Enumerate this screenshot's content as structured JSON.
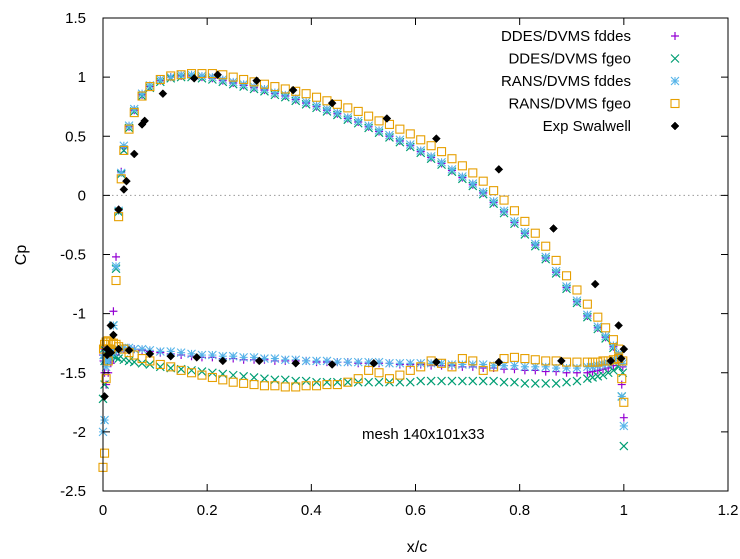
{
  "chart_data": {
    "type": "scatter",
    "xlabel": "x/c",
    "ylabel": "Cp",
    "xlim": [
      0,
      1.2
    ],
    "ylim": [
      -2.5,
      1.5
    ],
    "x_ticks": [
      "0",
      "0.2",
      "0.4",
      "0.6",
      "0.8",
      "1",
      "1.2"
    ],
    "y_ticks": [
      "1.5",
      "1",
      "0.5",
      "0",
      "-0.5",
      "-1",
      "-1.5",
      "-2",
      "-2.5"
    ],
    "reference_line": {
      "y": 0,
      "style": "dotted"
    },
    "legend_position": "top-right",
    "annotation": "mesh 140x101x33",
    "series": [
      {
        "name": "DDES/DVMS fddes",
        "marker": "plus",
        "color": "#9400d3",
        "x": [
          0.0,
          0.003,
          0.006,
          0.01,
          0.015,
          0.02,
          0.025,
          0.03,
          0.035,
          0.04,
          0.05,
          0.06,
          0.075,
          0.09,
          0.11,
          0.13,
          0.15,
          0.17,
          0.19,
          0.21,
          0.23,
          0.25,
          0.27,
          0.29,
          0.31,
          0.33,
          0.35,
          0.37,
          0.39,
          0.41,
          0.43,
          0.45,
          0.47,
          0.49,
          0.51,
          0.53,
          0.55,
          0.57,
          0.59,
          0.61,
          0.63,
          0.65,
          0.67,
          0.69,
          0.71,
          0.73,
          0.75,
          0.77,
          0.79,
          0.81,
          0.83,
          0.85,
          0.87,
          0.89,
          0.91,
          0.93,
          0.95,
          0.965,
          0.98,
          0.99,
          0.996,
          1.0,
          0.998,
          0.99,
          0.98,
          0.97,
          0.96,
          0.95,
          0.94,
          0.93,
          0.91,
          0.89,
          0.87,
          0.85,
          0.83,
          0.81,
          0.79,
          0.77,
          0.75,
          0.73,
          0.71,
          0.69,
          0.67,
          0.65,
          0.63,
          0.61,
          0.59,
          0.57,
          0.55,
          0.53,
          0.51,
          0.49,
          0.47,
          0.45,
          0.43,
          0.41,
          0.39,
          0.37,
          0.35,
          0.33,
          0.31,
          0.29,
          0.27,
          0.25,
          0.23,
          0.21,
          0.19,
          0.17,
          0.15,
          0.13,
          0.11,
          0.09,
          0.075,
          0.06,
          0.05,
          0.04,
          0.03,
          0.025,
          0.02,
          0.015,
          0.01,
          0.006,
          0.003,
          0.001
        ],
        "y": [
          -1.35,
          -1.3,
          -1.3,
          -1.31,
          -1.32,
          -0.98,
          -0.52,
          -0.12,
          0.2,
          0.4,
          0.58,
          0.72,
          0.85,
          0.92,
          0.97,
          1.0,
          1.01,
          1.01,
          1.0,
          0.99,
          0.97,
          0.95,
          0.93,
          0.91,
          0.89,
          0.86,
          0.84,
          0.81,
          0.78,
          0.75,
          0.72,
          0.69,
          0.65,
          0.62,
          0.58,
          0.54,
          0.5,
          0.46,
          0.42,
          0.37,
          0.32,
          0.27,
          0.21,
          0.15,
          0.09,
          0.02,
          -0.06,
          -0.14,
          -0.23,
          -0.32,
          -0.42,
          -0.53,
          -0.65,
          -0.78,
          -0.9,
          -1.02,
          -1.12,
          -1.2,
          -1.28,
          -1.35,
          -1.6,
          -1.88,
          -1.45,
          -1.42,
          -1.44,
          -1.46,
          -1.47,
          -1.48,
          -1.49,
          -1.5,
          -1.5,
          -1.5,
          -1.49,
          -1.49,
          -1.48,
          -1.48,
          -1.47,
          -1.47,
          -1.46,
          -1.46,
          -1.45,
          -1.45,
          -1.44,
          -1.44,
          -1.44,
          -1.43,
          -1.43,
          -1.43,
          -1.42,
          -1.42,
          -1.42,
          -1.42,
          -1.41,
          -1.41,
          -1.41,
          -1.41,
          -1.4,
          -1.4,
          -1.4,
          -1.4,
          -1.39,
          -1.39,
          -1.39,
          -1.38,
          -1.38,
          -1.37,
          -1.37,
          -1.36,
          -1.35,
          -1.34,
          -1.33,
          -1.32,
          -1.31,
          -1.3,
          -1.29,
          -1.3,
          -1.32,
          -1.35,
          -1.38,
          -1.42,
          -1.5,
          -1.6,
          -1.5,
          -1.4
        ]
      },
      {
        "name": "DDES/DVMS fgeo",
        "marker": "x",
        "color": "#009e73",
        "x": [
          0.0,
          0.003,
          0.006,
          0.01,
          0.015,
          0.02,
          0.025,
          0.03,
          0.035,
          0.04,
          0.05,
          0.06,
          0.075,
          0.09,
          0.11,
          0.13,
          0.15,
          0.17,
          0.19,
          0.21,
          0.23,
          0.25,
          0.27,
          0.29,
          0.31,
          0.33,
          0.35,
          0.37,
          0.39,
          0.41,
          0.43,
          0.45,
          0.47,
          0.49,
          0.51,
          0.53,
          0.55,
          0.57,
          0.59,
          0.61,
          0.63,
          0.65,
          0.67,
          0.69,
          0.71,
          0.73,
          0.75,
          0.77,
          0.79,
          0.81,
          0.83,
          0.85,
          0.87,
          0.89,
          0.91,
          0.93,
          0.95,
          0.965,
          0.98,
          0.99,
          0.996,
          1.0,
          0.998,
          0.99,
          0.98,
          0.97,
          0.96,
          0.95,
          0.94,
          0.93,
          0.91,
          0.89,
          0.87,
          0.85,
          0.83,
          0.81,
          0.79,
          0.77,
          0.75,
          0.73,
          0.71,
          0.69,
          0.67,
          0.65,
          0.63,
          0.61,
          0.59,
          0.57,
          0.55,
          0.53,
          0.51,
          0.49,
          0.47,
          0.45,
          0.43,
          0.41,
          0.39,
          0.37,
          0.35,
          0.33,
          0.31,
          0.29,
          0.27,
          0.25,
          0.23,
          0.21,
          0.19,
          0.17,
          0.15,
          0.13,
          0.11,
          0.09,
          0.075,
          0.06,
          0.05,
          0.04,
          0.03,
          0.025,
          0.02,
          0.015,
          0.01,
          0.006,
          0.003,
          0.001
        ],
        "y": [
          -1.72,
          -1.4,
          -1.38,
          -1.36,
          -1.35,
          -1.1,
          -0.62,
          -0.14,
          0.18,
          0.38,
          0.57,
          0.71,
          0.84,
          0.91,
          0.96,
          0.99,
          1.0,
          1.0,
          0.99,
          0.98,
          0.96,
          0.94,
          0.92,
          0.9,
          0.88,
          0.85,
          0.83,
          0.8,
          0.77,
          0.74,
          0.71,
          0.68,
          0.64,
          0.61,
          0.57,
          0.53,
          0.49,
          0.45,
          0.41,
          0.36,
          0.31,
          0.26,
          0.2,
          0.14,
          0.08,
          0.01,
          -0.07,
          -0.15,
          -0.24,
          -0.33,
          -0.43,
          -0.54,
          -0.66,
          -0.79,
          -0.91,
          -1.03,
          -1.13,
          -1.21,
          -1.29,
          -1.36,
          -1.7,
          -2.12,
          -1.5,
          -1.45,
          -1.48,
          -1.5,
          -1.52,
          -1.53,
          -1.54,
          -1.55,
          -1.57,
          -1.58,
          -1.59,
          -1.59,
          -1.59,
          -1.59,
          -1.58,
          -1.58,
          -1.57,
          -1.57,
          -1.57,
          -1.57,
          -1.57,
          -1.57,
          -1.57,
          -1.57,
          -1.58,
          -1.58,
          -1.58,
          -1.58,
          -1.58,
          -1.58,
          -1.58,
          -1.58,
          -1.58,
          -1.58,
          -1.57,
          -1.57,
          -1.56,
          -1.56,
          -1.55,
          -1.54,
          -1.53,
          -1.52,
          -1.51,
          -1.5,
          -1.49,
          -1.48,
          -1.47,
          -1.46,
          -1.45,
          -1.43,
          -1.42,
          -1.41,
          -1.4,
          -1.39,
          -1.38,
          -1.37,
          -1.36,
          -1.35,
          -1.35,
          -1.34,
          -1.6,
          -1.3
        ]
      },
      {
        "name": "RANS/DVMS fddes",
        "marker": "star",
        "color": "#56b4e9",
        "x": [
          0.0,
          0.003,
          0.006,
          0.01,
          0.015,
          0.02,
          0.025,
          0.03,
          0.035,
          0.04,
          0.05,
          0.06,
          0.075,
          0.09,
          0.11,
          0.13,
          0.15,
          0.17,
          0.19,
          0.21,
          0.23,
          0.25,
          0.27,
          0.29,
          0.31,
          0.33,
          0.35,
          0.37,
          0.39,
          0.41,
          0.43,
          0.45,
          0.47,
          0.49,
          0.51,
          0.53,
          0.55,
          0.57,
          0.59,
          0.61,
          0.63,
          0.65,
          0.67,
          0.69,
          0.71,
          0.73,
          0.75,
          0.77,
          0.79,
          0.81,
          0.83,
          0.85,
          0.87,
          0.89,
          0.91,
          0.93,
          0.95,
          0.965,
          0.98,
          0.99,
          0.996,
          1.0,
          0.998,
          0.99,
          0.98,
          0.97,
          0.96,
          0.95,
          0.94,
          0.93,
          0.91,
          0.89,
          0.87,
          0.85,
          0.83,
          0.81,
          0.79,
          0.77,
          0.75,
          0.73,
          0.71,
          0.69,
          0.67,
          0.65,
          0.63,
          0.61,
          0.59,
          0.57,
          0.55,
          0.53,
          0.51,
          0.49,
          0.47,
          0.45,
          0.43,
          0.41,
          0.39,
          0.37,
          0.35,
          0.33,
          0.31,
          0.29,
          0.27,
          0.25,
          0.23,
          0.21,
          0.19,
          0.17,
          0.15,
          0.13,
          0.11,
          0.09,
          0.075,
          0.06,
          0.05,
          0.04,
          0.03,
          0.025,
          0.02,
          0.015,
          0.01,
          0.006,
          0.003,
          0.001
        ],
        "y": [
          -2.0,
          -1.9,
          -1.4,
          -1.32,
          -1.3,
          -1.1,
          -0.6,
          -0.13,
          0.19,
          0.42,
          0.59,
          0.73,
          0.86,
          0.93,
          0.98,
          1.0,
          1.02,
          1.02,
          1.01,
          1.0,
          0.98,
          0.96,
          0.94,
          0.92,
          0.9,
          0.87,
          0.85,
          0.82,
          0.79,
          0.76,
          0.73,
          0.7,
          0.66,
          0.63,
          0.59,
          0.55,
          0.51,
          0.47,
          0.43,
          0.38,
          0.33,
          0.28,
          0.22,
          0.16,
          0.1,
          0.03,
          -0.05,
          -0.13,
          -0.22,
          -0.31,
          -0.41,
          -0.52,
          -0.64,
          -0.77,
          -0.89,
          -1.01,
          -1.11,
          -1.19,
          -1.27,
          -1.34,
          -1.7,
          -1.95,
          -1.42,
          -1.38,
          -1.4,
          -1.42,
          -1.43,
          -1.44,
          -1.45,
          -1.45,
          -1.46,
          -1.46,
          -1.46,
          -1.45,
          -1.45,
          -1.45,
          -1.44,
          -1.44,
          -1.44,
          -1.43,
          -1.43,
          -1.43,
          -1.43,
          -1.42,
          -1.42,
          -1.42,
          -1.42,
          -1.42,
          -1.42,
          -1.41,
          -1.41,
          -1.41,
          -1.41,
          -1.41,
          -1.4,
          -1.4,
          -1.4,
          -1.39,
          -1.39,
          -1.38,
          -1.38,
          -1.37,
          -1.37,
          -1.36,
          -1.36,
          -1.35,
          -1.35,
          -1.34,
          -1.33,
          -1.32,
          -1.32,
          -1.31,
          -1.3,
          -1.3,
          -1.29,
          -1.29,
          -1.3,
          -1.31,
          -1.33,
          -1.36,
          -1.4,
          -1.45,
          -1.38,
          -1.35
        ]
      },
      {
        "name": "RANS/DVMS fgeo",
        "marker": "square",
        "color": "#e69f00",
        "x": [
          0.0,
          0.003,
          0.006,
          0.01,
          0.015,
          0.02,
          0.025,
          0.03,
          0.035,
          0.04,
          0.05,
          0.06,
          0.075,
          0.09,
          0.11,
          0.13,
          0.15,
          0.17,
          0.19,
          0.21,
          0.23,
          0.25,
          0.27,
          0.29,
          0.31,
          0.33,
          0.35,
          0.37,
          0.39,
          0.41,
          0.43,
          0.45,
          0.47,
          0.49,
          0.51,
          0.53,
          0.55,
          0.57,
          0.59,
          0.61,
          0.63,
          0.65,
          0.67,
          0.69,
          0.71,
          0.73,
          0.75,
          0.77,
          0.79,
          0.81,
          0.83,
          0.85,
          0.87,
          0.89,
          0.91,
          0.93,
          0.95,
          0.965,
          0.98,
          0.99,
          0.996,
          1.0,
          0.998,
          0.99,
          0.98,
          0.97,
          0.96,
          0.95,
          0.94,
          0.93,
          0.91,
          0.89,
          0.87,
          0.85,
          0.83,
          0.81,
          0.79,
          0.77,
          0.75,
          0.73,
          0.71,
          0.69,
          0.67,
          0.65,
          0.63,
          0.61,
          0.59,
          0.57,
          0.55,
          0.53,
          0.51,
          0.49,
          0.47,
          0.45,
          0.43,
          0.41,
          0.39,
          0.37,
          0.35,
          0.33,
          0.31,
          0.29,
          0.27,
          0.25,
          0.23,
          0.21,
          0.19,
          0.17,
          0.15,
          0.13,
          0.11,
          0.09,
          0.075,
          0.06,
          0.05,
          0.04,
          0.03,
          0.025,
          0.02,
          0.015,
          0.01,
          0.006,
          0.003,
          0.001
        ],
        "y": [
          -2.3,
          -2.18,
          -1.55,
          -1.4,
          -1.3,
          -1.26,
          -0.72,
          -0.18,
          0.14,
          0.38,
          0.56,
          0.7,
          0.84,
          0.92,
          0.98,
          1.01,
          1.02,
          1.03,
          1.03,
          1.03,
          1.02,
          1.0,
          0.98,
          0.96,
          0.94,
          0.92,
          0.9,
          0.88,
          0.86,
          0.83,
          0.8,
          0.77,
          0.74,
          0.71,
          0.67,
          0.63,
          0.6,
          0.56,
          0.52,
          0.47,
          0.42,
          0.37,
          0.31,
          0.25,
          0.19,
          0.12,
          0.04,
          -0.04,
          -0.13,
          -0.22,
          -0.32,
          -0.43,
          -0.55,
          -0.68,
          -0.8,
          -0.92,
          -1.03,
          -1.12,
          -1.22,
          -1.3,
          -1.55,
          -1.75,
          -1.4,
          -1.38,
          -1.39,
          -1.4,
          -1.4,
          -1.41,
          -1.41,
          -1.41,
          -1.41,
          -1.41,
          -1.4,
          -1.4,
          -1.39,
          -1.38,
          -1.37,
          -1.38,
          -1.45,
          -1.48,
          -1.4,
          -1.38,
          -1.45,
          -1.42,
          -1.4,
          -1.45,
          -1.48,
          -1.52,
          -1.55,
          -1.5,
          -1.48,
          -1.55,
          -1.58,
          -1.6,
          -1.6,
          -1.61,
          -1.61,
          -1.62,
          -1.62,
          -1.61,
          -1.61,
          -1.6,
          -1.59,
          -1.58,
          -1.56,
          -1.54,
          -1.52,
          -1.5,
          -1.48,
          -1.45,
          -1.43,
          -1.4,
          -1.38,
          -1.35,
          -1.33,
          -1.3,
          -1.28,
          -1.26,
          -1.25,
          -1.24,
          -1.23,
          -1.24,
          -1.26,
          -1.3
        ]
      },
      {
        "name": "Exp Swalwell",
        "marker": "diamond",
        "color": "#000000",
        "x": [
          0.003,
          0.008,
          0.015,
          0.02,
          0.03,
          0.04,
          0.045,
          0.06,
          0.075,
          0.08,
          0.115,
          0.175,
          0.22,
          0.295,
          0.365,
          0.44,
          0.545,
          0.64,
          0.76,
          0.865,
          0.945,
          0.99,
          1.0,
          0.995,
          0.975,
          0.88,
          0.76,
          0.64,
          0.52,
          0.44,
          0.37,
          0.3,
          0.23,
          0.18,
          0.13,
          0.09,
          0.05,
          0.03,
          0.015,
          0.008
        ],
        "y": [
          -1.7,
          -1.3,
          -1.1,
          -1.18,
          -0.12,
          0.05,
          0.12,
          0.35,
          0.6,
          0.63,
          0.86,
          0.99,
          1.02,
          0.97,
          0.89,
          0.78,
          0.65,
          0.48,
          0.22,
          -0.28,
          -0.75,
          -1.1,
          -1.3,
          -1.38,
          -1.4,
          -1.4,
          -1.41,
          -1.41,
          -1.42,
          -1.43,
          -1.42,
          -1.4,
          -1.4,
          -1.37,
          -1.36,
          -1.34,
          -1.31,
          -1.3,
          -1.33,
          -1.35
        ]
      }
    ]
  }
}
